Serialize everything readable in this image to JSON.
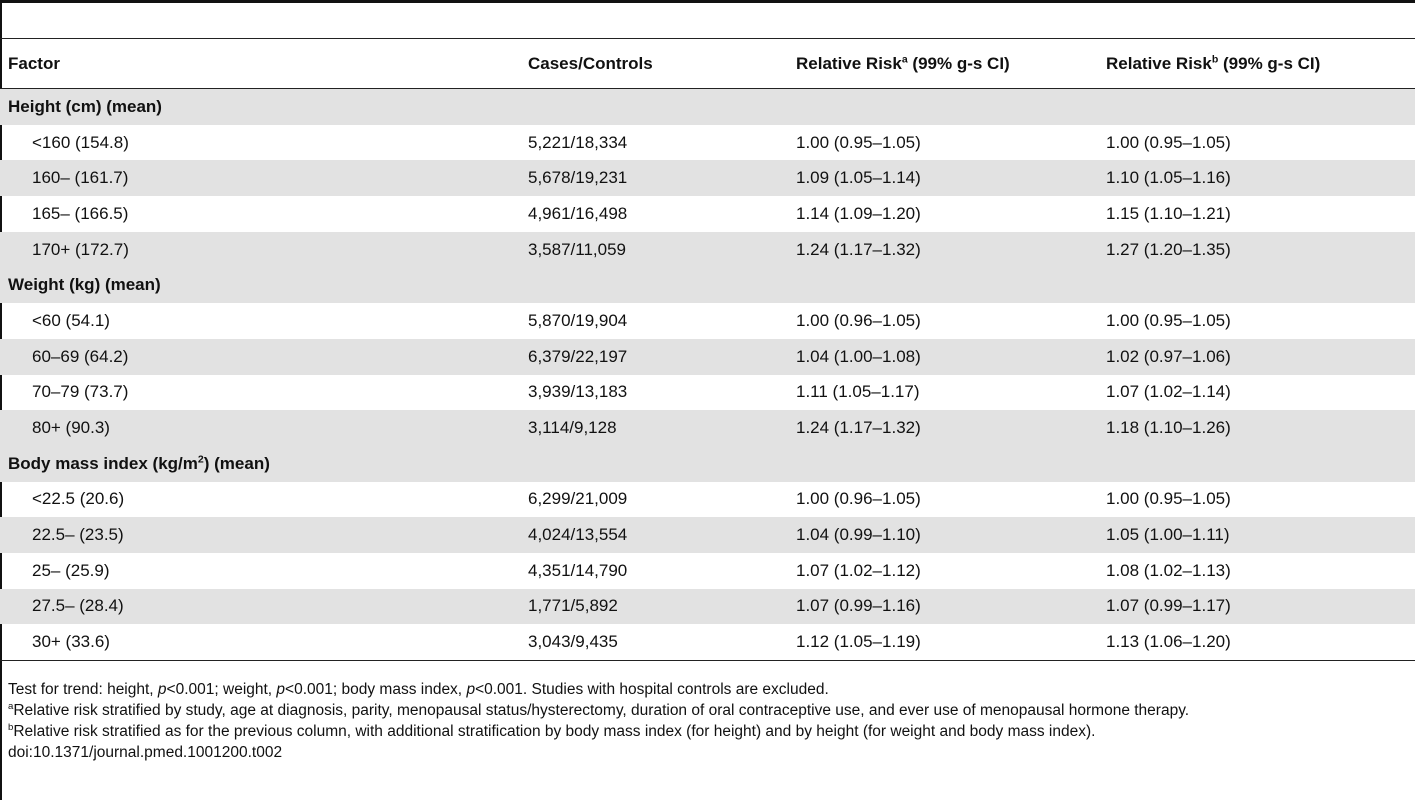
{
  "table": {
    "headers": {
      "factor": "Factor",
      "cases_controls": "Cases/Controls",
      "rr_a": {
        "label": "Relative Risk",
        "sup": "a",
        "suffix": " (99% g-s CI)"
      },
      "rr_b": {
        "label": "Relative Risk",
        "sup": "b",
        "suffix": " (99% g-s CI)"
      }
    },
    "groups": [
      {
        "label": "Height (cm) (mean)",
        "rows": [
          {
            "factor": "<160 (154.8)",
            "cases_controls": "5,221/18,334",
            "rr_a": "1.00 (0.95–1.05)",
            "rr_b": "1.00 (0.95–1.05)"
          },
          {
            "factor": "160– (161.7)",
            "cases_controls": "5,678/19,231",
            "rr_a": "1.09 (1.05–1.14)",
            "rr_b": "1.10 (1.05–1.16)"
          },
          {
            "factor": "165– (166.5)",
            "cases_controls": "4,961/16,498",
            "rr_a": "1.14 (1.09–1.20)",
            "rr_b": "1.15 (1.10–1.21)"
          },
          {
            "factor": "170+ (172.7)",
            "cases_controls": "3,587/11,059",
            "rr_a": "1.24 (1.17–1.32)",
            "rr_b": "1.27 (1.20–1.35)"
          }
        ]
      },
      {
        "label": "Weight (kg) (mean)",
        "rows": [
          {
            "factor": "<60 (54.1)",
            "cases_controls": "5,870/19,904",
            "rr_a": "1.00 (0.96–1.05)",
            "rr_b": "1.00 (0.95–1.05)"
          },
          {
            "factor": "60–69 (64.2)",
            "cases_controls": "6,379/22,197",
            "rr_a": "1.04 (1.00–1.08)",
            "rr_b": "1.02 (0.97–1.06)"
          },
          {
            "factor": "70–79 (73.7)",
            "cases_controls": "3,939/13,183",
            "rr_a": "1.11 (1.05–1.17)",
            "rr_b": "1.07 (1.02–1.14)"
          },
          {
            "factor": "80+ (90.3)",
            "cases_controls": "3,114/9,128",
            "rr_a": "1.24 (1.17–1.32)",
            "rr_b": "1.18 (1.10–1.26)"
          }
        ]
      },
      {
        "label": "Body mass index (kg/m",
        "label_sup": "2",
        "label_suffix": ") (mean)",
        "rows": [
          {
            "factor": "<22.5 (20.6)",
            "cases_controls": "6,299/21,009",
            "rr_a": "1.00 (0.96–1.05)",
            "rr_b": "1.00 (0.95–1.05)"
          },
          {
            "factor": "22.5– (23.5)",
            "cases_controls": "4,024/13,554",
            "rr_a": "1.04 (0.99–1.10)",
            "rr_b": "1.05 (1.00–1.11)"
          },
          {
            "factor": "25– (25.9)",
            "cases_controls": "4,351/14,790",
            "rr_a": "1.07 (1.02–1.12)",
            "rr_b": "1.08 (1.02–1.13)"
          },
          {
            "factor": "27.5– (28.4)",
            "cases_controls": "1,771/5,892",
            "rr_a": "1.07 (0.99–1.16)",
            "rr_b": "1.07 (0.99–1.17)"
          },
          {
            "factor": "30+ (33.6)",
            "cases_controls": "3,043/9,435",
            "rr_a": "1.12 (1.05–1.19)",
            "rr_b": "1.13 (1.06–1.20)"
          }
        ]
      }
    ]
  },
  "footnotes": {
    "trend": {
      "t1": "Test for trend: height, ",
      "p": "p",
      "t2": "<0.001; weight, ",
      "t3": "<0.001; body mass index, ",
      "t4": "<0.001. Studies with hospital controls are excluded."
    },
    "a": {
      "mark": "a",
      "text": "Relative risk stratified by study, age at diagnosis, parity, menopausal status/hysterectomy, duration of oral contraceptive use, and ever use of menopausal hormone therapy."
    },
    "b": {
      "mark": "b",
      "text": "Relative risk stratified as for the previous column, with additional stratification by body mass index (for height) and by height (for weight and body mass index)."
    },
    "doi": "doi:10.1371/journal.pmed.1001200.t002"
  }
}
